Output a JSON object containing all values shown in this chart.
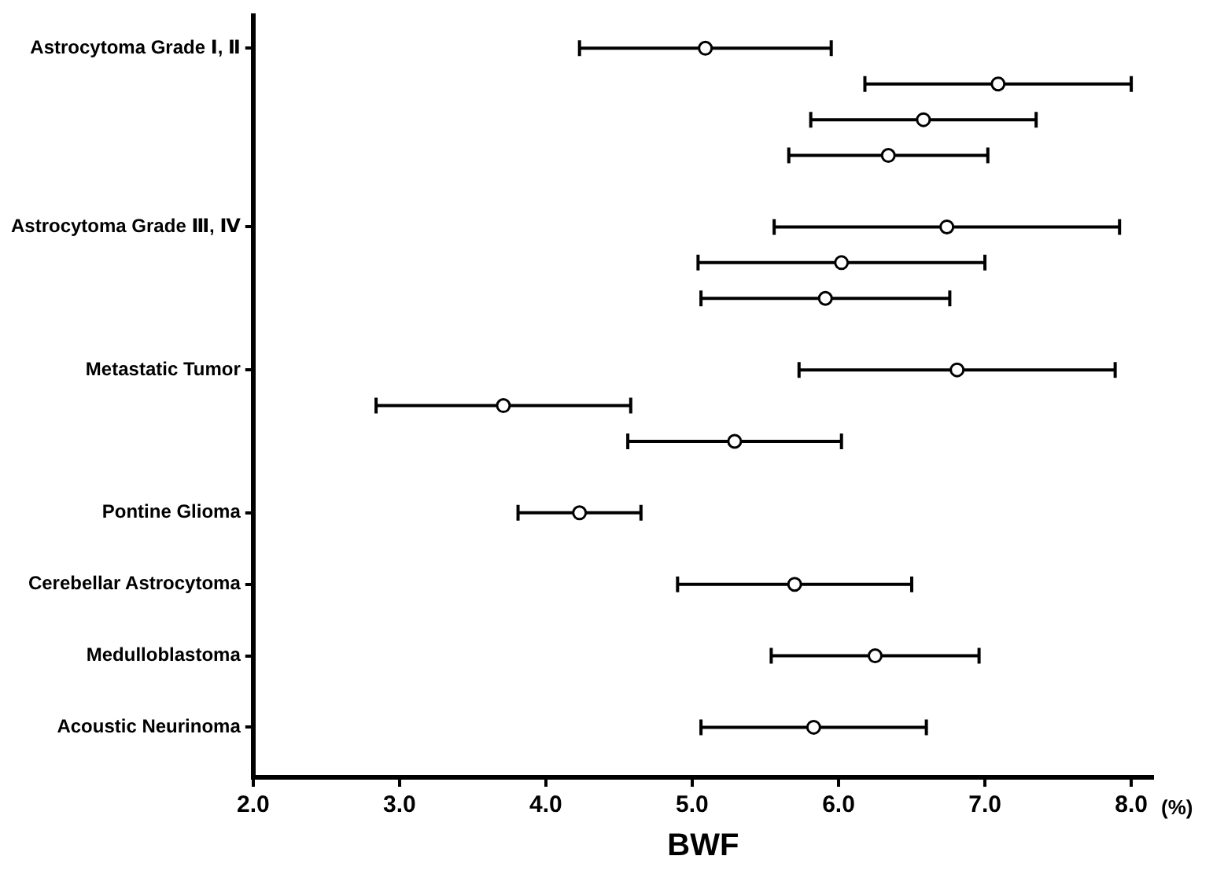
{
  "chart_data": {
    "type": "scatter",
    "orientation": "horizontal",
    "xlabel": "BWF",
    "annotations": [
      "(%)"
    ],
    "categories": [
      "Astrocytoma Grade Ⅰ, Ⅱ",
      null,
      null,
      null,
      null,
      "Astrocytoma Grade Ⅲ, Ⅳ",
      null,
      null,
      null,
      "Metastatic Tumor",
      null,
      null,
      null,
      "Pontine Glioma",
      null,
      "Cerebellar Astrocytoma",
      null,
      "Medulloblastoma",
      null,
      "Acoustic Neurinoma"
    ],
    "values": [
      5.09,
      7.09,
      6.58,
      6.34,
      null,
      6.74,
      6.02,
      5.91,
      null,
      6.81,
      3.71,
      5.29,
      null,
      4.23,
      null,
      5.7,
      null,
      6.25,
      null,
      5.83
    ],
    "errors": [
      0.86,
      0.91,
      0.77,
      0.68,
      null,
      1.18,
      0.98,
      0.85,
      null,
      1.08,
      0.87,
      0.73,
      null,
      0.42,
      null,
      0.8,
      null,
      0.71,
      null,
      0.77
    ],
    "color": "#000000",
    "marker": "circle",
    "grid": false,
    "legend": false,
    "xlim": [
      2,
      8.15
    ],
    "xticks": [
      {
        "value": 2,
        "label": "2.0"
      },
      {
        "value": 3,
        "label": "3.0"
      },
      {
        "value": 4,
        "label": "4.0"
      },
      {
        "value": 5,
        "label": "5.0"
      },
      {
        "value": 6,
        "label": "6.0"
      },
      {
        "value": 7,
        "label": "7.0"
      },
      {
        "value": 8,
        "label": "8.0"
      }
    ]
  }
}
